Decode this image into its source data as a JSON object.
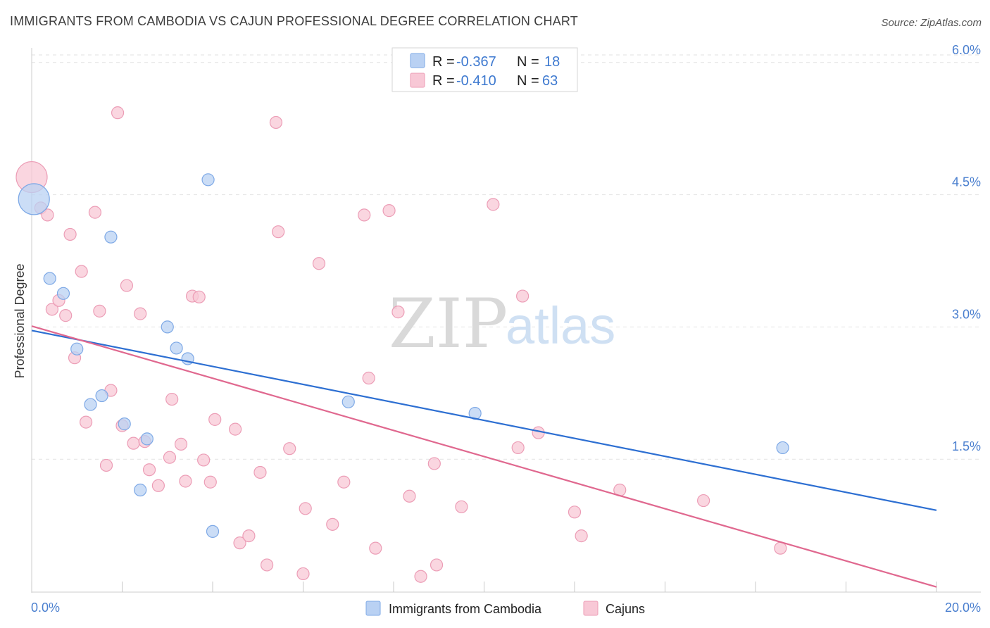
{
  "header": {
    "title": "IMMIGRANTS FROM CAMBODIA VS CAJUN PROFESSIONAL DEGREE CORRELATION CHART",
    "source": "Source: ZipAtlas.com"
  },
  "watermark": {
    "zip": "ZIP",
    "atlas": "atlas"
  },
  "colors": {
    "blue_fill": "#b9d1f3",
    "blue_stroke": "#7ea9e6",
    "blue_line": "#2d6fd2",
    "pink_fill": "#f8c8d6",
    "pink_stroke": "#ec9db6",
    "pink_line": "#e0688f",
    "tick_text": "#4a7fcf",
    "grid": "#e2e2e2"
  },
  "legend": {
    "rows": [
      {
        "r_label": "R =",
        "r_value": "-0.367",
        "n_label": "N =",
        "n_value": "18"
      },
      {
        "r_label": "R =",
        "r_value": "-0.410",
        "n_label": "N =",
        "n_value": "63"
      }
    ]
  },
  "bottom_legend": {
    "series1": "Immigrants from Cambodia",
    "series2": "Cajuns"
  },
  "chart_data": {
    "type": "scatter",
    "title": "IMMIGRANTS FROM CAMBODIA VS CAJUN PROFESSIONAL DEGREE CORRELATION CHART",
    "xlabel": "",
    "ylabel": "Professional Degree",
    "xlim": [
      0,
      20
    ],
    "ylim": [
      0,
      6.15
    ],
    "x_tick_labels": {
      "min": "0.0%",
      "max": "20.0%"
    },
    "y_ticks": [
      {
        "value": 1.5,
        "label": "1.5%"
      },
      {
        "value": 3.0,
        "label": "3.0%"
      },
      {
        "value": 4.5,
        "label": "4.5%"
      },
      {
        "value": 6.0,
        "label": "6.0%"
      }
    ],
    "grid": true,
    "legend_position": "top-center",
    "series": [
      {
        "name": "Immigrants from Cambodia",
        "r": -0.367,
        "n": 18,
        "trend": {
          "x": [
            0,
            20
          ],
          "y": [
            2.96,
            0.92
          ]
        },
        "points": [
          {
            "x": 0.05,
            "y": 4.45,
            "size": "large"
          },
          {
            "x": 0.4,
            "y": 3.55
          },
          {
            "x": 0.7,
            "y": 3.38
          },
          {
            "x": 1.0,
            "y": 2.75
          },
          {
            "x": 1.3,
            "y": 2.12
          },
          {
            "x": 1.55,
            "y": 2.22
          },
          {
            "x": 1.75,
            "y": 4.02
          },
          {
            "x": 2.05,
            "y": 1.9
          },
          {
            "x": 2.55,
            "y": 1.73
          },
          {
            "x": 2.4,
            "y": 1.15
          },
          {
            "x": 3.0,
            "y": 3.0
          },
          {
            "x": 3.2,
            "y": 2.76
          },
          {
            "x": 3.45,
            "y": 2.64
          },
          {
            "x": 3.9,
            "y": 4.67
          },
          {
            "x": 4.0,
            "y": 0.68
          },
          {
            "x": 7.0,
            "y": 2.15
          },
          {
            "x": 9.8,
            "y": 2.02
          },
          {
            "x": 16.6,
            "y": 1.63
          }
        ]
      },
      {
        "name": "Cajuns",
        "r": -0.41,
        "n": 63,
        "trend": {
          "x": [
            0,
            20
          ],
          "y": [
            3.01,
            0.05
          ]
        },
        "points": [
          {
            "x": 0.0,
            "y": 4.7,
            "size": "large"
          },
          {
            "x": 0.2,
            "y": 4.35
          },
          {
            "x": 0.35,
            "y": 4.27
          },
          {
            "x": 0.45,
            "y": 3.2
          },
          {
            "x": 0.6,
            "y": 3.3
          },
          {
            "x": 0.75,
            "y": 3.13
          },
          {
            "x": 0.85,
            "y": 4.05
          },
          {
            "x": 0.95,
            "y": 2.65
          },
          {
            "x": 1.1,
            "y": 3.63
          },
          {
            "x": 1.2,
            "y": 1.92
          },
          {
            "x": 1.4,
            "y": 4.3
          },
          {
            "x": 1.5,
            "y": 3.18
          },
          {
            "x": 1.65,
            "y": 1.43
          },
          {
            "x": 1.75,
            "y": 2.28
          },
          {
            "x": 1.9,
            "y": 5.43
          },
          {
            "x": 2.0,
            "y": 1.88
          },
          {
            "x": 2.1,
            "y": 3.47
          },
          {
            "x": 2.25,
            "y": 1.68
          },
          {
            "x": 2.4,
            "y": 3.15
          },
          {
            "x": 2.5,
            "y": 1.7
          },
          {
            "x": 2.6,
            "y": 1.38
          },
          {
            "x": 2.8,
            "y": 1.2
          },
          {
            "x": 3.05,
            "y": 1.52
          },
          {
            "x": 3.1,
            "y": 2.18
          },
          {
            "x": 3.3,
            "y": 1.67
          },
          {
            "x": 3.4,
            "y": 1.25
          },
          {
            "x": 3.55,
            "y": 3.35
          },
          {
            "x": 3.7,
            "y": 3.34
          },
          {
            "x": 3.8,
            "y": 1.49
          },
          {
            "x": 3.95,
            "y": 1.24
          },
          {
            "x": 4.05,
            "y": 1.95
          },
          {
            "x": 4.5,
            "y": 1.84
          },
          {
            "x": 4.6,
            "y": 0.55
          },
          {
            "x": 4.8,
            "y": 0.63
          },
          {
            "x": 5.05,
            "y": 1.35
          },
          {
            "x": 5.2,
            "y": 0.3
          },
          {
            "x": 5.4,
            "y": 5.32
          },
          {
            "x": 5.45,
            "y": 4.08
          },
          {
            "x": 5.7,
            "y": 1.62
          },
          {
            "x": 6.0,
            "y": 0.2
          },
          {
            "x": 6.05,
            "y": 0.94
          },
          {
            "x": 6.35,
            "y": 3.72
          },
          {
            "x": 6.65,
            "y": 0.76
          },
          {
            "x": 6.9,
            "y": 1.24
          },
          {
            "x": 7.35,
            "y": 4.27
          },
          {
            "x": 7.45,
            "y": 2.42
          },
          {
            "x": 7.6,
            "y": 0.49
          },
          {
            "x": 7.9,
            "y": 4.32
          },
          {
            "x": 8.1,
            "y": 3.17
          },
          {
            "x": 8.35,
            "y": 1.08
          },
          {
            "x": 8.6,
            "y": 0.17
          },
          {
            "x": 8.9,
            "y": 1.45
          },
          {
            "x": 8.95,
            "y": 0.3
          },
          {
            "x": 9.5,
            "y": 0.96
          },
          {
            "x": 10.2,
            "y": 4.39
          },
          {
            "x": 10.75,
            "y": 1.63
          },
          {
            "x": 10.85,
            "y": 3.35
          },
          {
            "x": 11.2,
            "y": 1.8
          },
          {
            "x": 12.0,
            "y": 0.9
          },
          {
            "x": 12.15,
            "y": 0.63
          },
          {
            "x": 13.0,
            "y": 1.15
          },
          {
            "x": 14.85,
            "y": 1.03
          },
          {
            "x": 16.55,
            "y": 0.49
          }
        ]
      }
    ]
  }
}
